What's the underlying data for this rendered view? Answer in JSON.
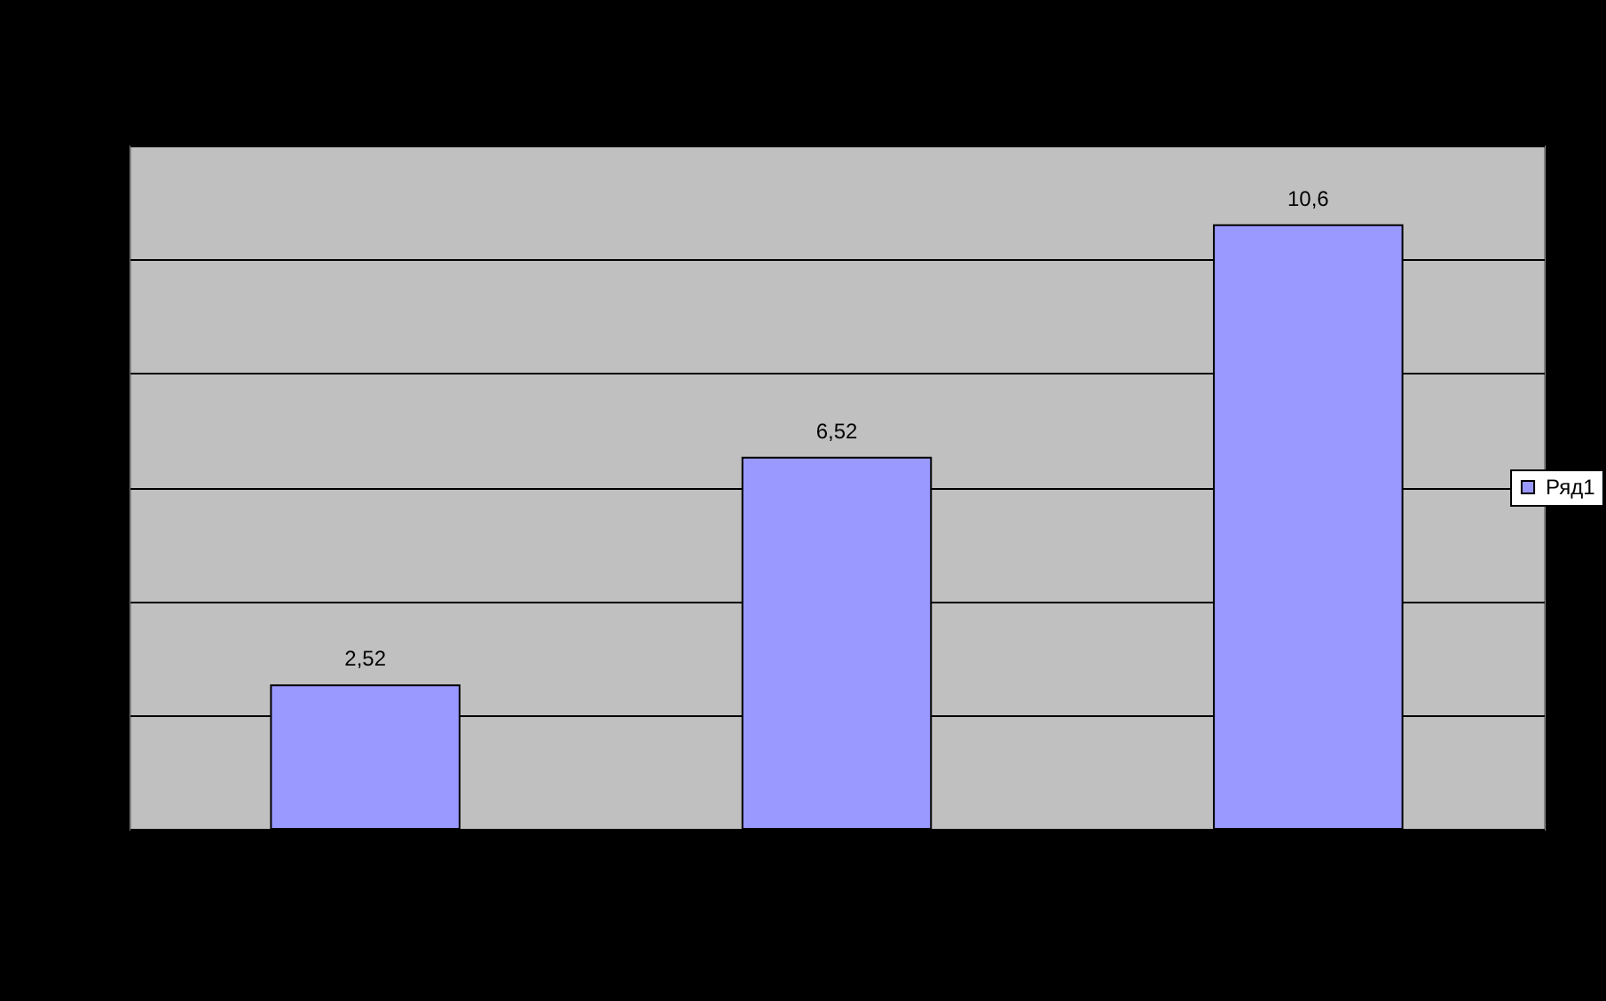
{
  "chart_data": {
    "type": "bar",
    "categories": [
      null,
      null,
      null
    ],
    "series": [
      {
        "name": "Ряд1",
        "color": "#9999ff",
        "values": [
          2.52,
          6.52,
          10.6
        ],
        "value_labels": [
          "2,52",
          "6,52",
          "10,6"
        ]
      }
    ],
    "ylim": [
      0,
      12
    ],
    "yticks": [
      {
        "value": 0,
        "label": null
      },
      {
        "value": 2,
        "label": null
      },
      {
        "value": 4,
        "label": null
      },
      {
        "value": 6,
        "label": null
      },
      {
        "value": 8,
        "label": null
      },
      {
        "value": 10,
        "label": null
      },
      {
        "value": 12,
        "label": null
      }
    ],
    "grid": "y",
    "legend": "right"
  }
}
